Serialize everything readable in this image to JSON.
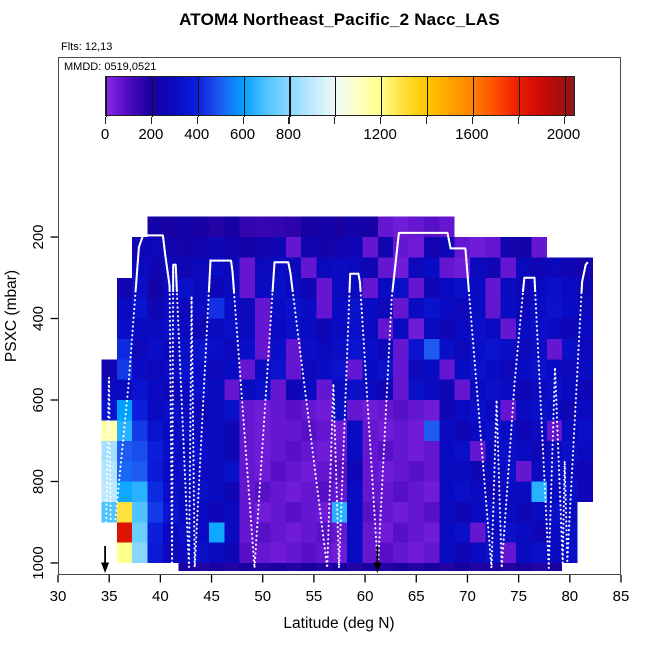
{
  "page_background": "#ffffff",
  "header": {
    "title": "ATOM4 Northeast_Pacific_2 Nacc_LAS",
    "flights_label": "Flts: 12,13",
    "mmdd_label": "MMDD: 0519,0521"
  },
  "colors": {
    "track": "#ffffff",
    "arrow": "#000000",
    "axis": "#000000",
    "box_border": "#4a4a4a"
  },
  "chart_data": {
    "type": "heatmap",
    "title": "ATOM4 Northeast_Pacific_2 Nacc_LAS",
    "xlabel": "Latitude (deg N)",
    "ylabel": "PSXC (mbar)",
    "xlim": [
      30,
      85
    ],
    "ylim": [
      150,
      1020
    ],
    "y_axis_reversed": true,
    "x_ticks": [
      30,
      35,
      40,
      45,
      50,
      55,
      60,
      65,
      70,
      75,
      80,
      85
    ],
    "y_ticks": [
      200,
      400,
      600,
      800,
      1000
    ],
    "grid": false,
    "colorbar": {
      "vmin": 0,
      "vmax": 2050,
      "tick_values": [
        0,
        200,
        400,
        600,
        800,
        1000,
        1200,
        1400,
        1600,
        1800,
        2000
      ],
      "labeled_values": [
        0,
        200,
        400,
        600,
        800,
        1200,
        1600,
        2000
      ],
      "stops": [
        [
          0,
          "#8c28eb"
        ],
        [
          100,
          "#4b0abe"
        ],
        [
          200,
          "#1900a0"
        ],
        [
          300,
          "#0a0ac0"
        ],
        [
          400,
          "#0a1edc"
        ],
        [
          500,
          "#1e5af0"
        ],
        [
          600,
          "#00a0ff"
        ],
        [
          700,
          "#50c3ff"
        ],
        [
          800,
          "#87d7ff"
        ],
        [
          900,
          "#bee8ff"
        ],
        [
          1000,
          "#ebfaf8"
        ],
        [
          1100,
          "#ffffc8"
        ],
        [
          1200,
          "#ffff8c"
        ],
        [
          1300,
          "#ffe13c"
        ],
        [
          1400,
          "#ffc800"
        ],
        [
          1500,
          "#ffa500"
        ],
        [
          1600,
          "#ff8200"
        ],
        [
          1700,
          "#ff5000"
        ],
        [
          1800,
          "#ee1e00"
        ],
        [
          1900,
          "#cd0a05"
        ],
        [
          2000,
          "#a50f0f"
        ],
        [
          2050,
          "#8c1919"
        ]
      ]
    },
    "lat_edges": [
      34.25,
      35.75,
      37.25,
      38.75,
      40.25,
      41.75,
      43.25,
      44.75,
      46.25,
      47.75,
      49.25,
      50.75,
      52.25,
      53.75,
      55.25,
      56.75,
      58.25,
      59.75,
      61.25,
      62.75,
      64.25,
      65.75,
      67.25,
      68.75,
      70.25,
      71.75,
      73.25,
      74.75,
      76.25,
      77.75,
      79.25,
      80.75,
      82.25
    ],
    "pressure_edges": [
      150,
      200,
      250,
      300,
      350,
      400,
      450,
      500,
      550,
      600,
      650,
      700,
      750,
      800,
      850,
      900,
      950,
      1000,
      1020
    ],
    "values": [
      [
        null,
        null,
        null,
        230,
        200,
        230,
        200,
        180,
        210,
        150,
        140,
        150,
        160,
        210,
        230,
        200,
        230,
        210,
        60,
        45,
        60,
        80,
        60,
        null,
        null,
        null,
        null,
        null,
        null,
        null,
        null,
        null
      ],
      [
        null,
        null,
        260,
        280,
        250,
        230,
        250,
        270,
        250,
        230,
        250,
        270,
        60,
        250,
        230,
        250,
        270,
        60,
        250,
        60,
        45,
        250,
        270,
        60,
        45,
        60,
        250,
        230,
        60,
        null,
        null,
        null
      ],
      [
        null,
        null,
        300,
        260,
        290,
        260,
        290,
        310,
        290,
        60,
        290,
        310,
        290,
        60,
        290,
        310,
        290,
        260,
        60,
        45,
        290,
        310,
        60,
        45,
        290,
        260,
        60,
        290,
        260,
        290,
        260,
        230
      ],
      [
        null,
        250,
        320,
        230,
        300,
        330,
        300,
        270,
        300,
        60,
        300,
        330,
        300,
        270,
        60,
        300,
        300,
        60,
        300,
        330,
        60,
        270,
        300,
        330,
        300,
        60,
        300,
        270,
        300,
        330,
        300,
        270
      ],
      [
        null,
        300,
        350,
        260,
        310,
        280,
        310,
        430,
        310,
        280,
        60,
        310,
        340,
        310,
        60,
        310,
        340,
        310,
        280,
        60,
        310,
        340,
        310,
        280,
        310,
        60,
        310,
        280,
        310,
        340,
        310,
        280
      ],
      [
        null,
        320,
        300,
        300,
        330,
        300,
        270,
        300,
        330,
        300,
        60,
        300,
        330,
        300,
        270,
        300,
        330,
        300,
        60,
        300,
        45,
        300,
        270,
        300,
        330,
        300,
        60,
        300,
        330,
        300,
        270,
        300
      ],
      [
        null,
        420,
        280,
        320,
        290,
        320,
        350,
        320,
        290,
        320,
        60,
        320,
        60,
        320,
        290,
        320,
        350,
        320,
        290,
        60,
        350,
        500,
        320,
        290,
        320,
        350,
        320,
        290,
        320,
        60,
        320,
        290
      ],
      [
        250,
        450,
        310,
        280,
        310,
        340,
        310,
        280,
        310,
        60,
        310,
        340,
        60,
        280,
        310,
        340,
        60,
        310,
        340,
        60,
        280,
        310,
        60,
        310,
        340,
        310,
        280,
        310,
        340,
        310,
        280,
        310
      ],
      [
        300,
        300,
        350,
        300,
        270,
        300,
        330,
        300,
        60,
        300,
        330,
        60,
        270,
        300,
        60,
        300,
        330,
        300,
        270,
        60,
        330,
        300,
        270,
        60,
        300,
        330,
        300,
        270,
        300,
        330,
        300,
        270
      ],
      [
        350,
        600,
        400,
        300,
        330,
        300,
        270,
        300,
        330,
        60,
        45,
        60,
        80,
        60,
        45,
        330,
        60,
        45,
        60,
        80,
        60,
        45,
        270,
        300,
        330,
        300,
        60,
        300,
        330,
        300,
        270,
        300
      ],
      [
        1150,
        650,
        450,
        350,
        300,
        330,
        300,
        300,
        270,
        60,
        45,
        60,
        60,
        80,
        60,
        45,
        300,
        60,
        45,
        60,
        45,
        500,
        300,
        270,
        300,
        330,
        300,
        270,
        300,
        60,
        300,
        330
      ],
      [
        850,
        500,
        480,
        400,
        320,
        300,
        330,
        300,
        270,
        60,
        45,
        60,
        80,
        60,
        45,
        60,
        300,
        60,
        80,
        60,
        45,
        60,
        300,
        330,
        60,
        300,
        330,
        300,
        270,
        300,
        330,
        300
      ],
      [
        880,
        520,
        500,
        380,
        300,
        330,
        300,
        300,
        330,
        60,
        45,
        80,
        60,
        45,
        60,
        80,
        270,
        60,
        45,
        60,
        80,
        60,
        300,
        300,
        270,
        300,
        330,
        60,
        300,
        330,
        300,
        270
      ],
      [
        900,
        620,
        650,
        420,
        320,
        300,
        330,
        300,
        270,
        60,
        80,
        60,
        45,
        60,
        80,
        60,
        300,
        60,
        60,
        80,
        60,
        45,
        300,
        330,
        300,
        270,
        300,
        300,
        650,
        300,
        330,
        270
      ],
      [
        700,
        1300,
        700,
        450,
        350,
        300,
        300,
        270,
        300,
        60,
        45,
        60,
        80,
        60,
        45,
        650,
        300,
        80,
        60,
        45,
        60,
        80,
        300,
        270,
        300,
        330,
        300,
        270,
        300,
        330,
        300,
        null
      ],
      [
        null,
        1850,
        750,
        400,
        300,
        330,
        300,
        620,
        300,
        60,
        80,
        60,
        45,
        60,
        80,
        60,
        300,
        60,
        45,
        80,
        60,
        45,
        300,
        330,
        60,
        300,
        330,
        300,
        270,
        300,
        330,
        null
      ],
      [
        null,
        1200,
        800,
        380,
        280,
        300,
        330,
        300,
        270,
        80,
        60,
        45,
        60,
        80,
        60,
        45,
        300,
        60,
        80,
        60,
        45,
        60,
        300,
        270,
        300,
        330,
        60,
        300,
        330,
        300,
        330,
        null
      ],
      [
        null,
        null,
        null,
        null,
        null,
        200,
        180,
        200,
        180,
        200,
        180,
        200,
        180,
        200,
        180,
        200,
        180,
        200,
        180,
        200,
        180,
        200,
        180,
        200,
        180,
        200,
        180,
        200,
        180,
        200,
        null,
        null
      ]
    ],
    "flight_track": {
      "color": "#ffffff",
      "solid_above_mbar": 335,
      "points": [
        [
          34.62,
          1008
        ],
        [
          34.98,
          545
        ],
        [
          35.2,
          1000
        ],
        [
          36.9,
          560
        ],
        [
          37.9,
          225
        ],
        [
          38.3,
          196
        ],
        [
          40.25,
          196
        ],
        [
          40.45,
          240
        ],
        [
          40.9,
          320
        ],
        [
          41.15,
          1005
        ],
        [
          41.25,
          268
        ],
        [
          41.5,
          268
        ],
        [
          42.8,
          1010
        ],
        [
          43.05,
          345
        ],
        [
          43.35,
          1010
        ],
        [
          44.9,
          258
        ],
        [
          46.9,
          258
        ],
        [
          47.05,
          285
        ],
        [
          49.2,
          1012
        ],
        [
          51.15,
          262
        ],
        [
          52.5,
          262
        ],
        [
          52.7,
          288
        ],
        [
          56.3,
          1012
        ],
        [
          56.9,
          560
        ],
        [
          57.45,
          1012
        ],
        [
          58.55,
          290
        ],
        [
          59.35,
          290
        ],
        [
          59.5,
          312
        ],
        [
          61.25,
          1012
        ],
        [
          62.6,
          350
        ],
        [
          63.3,
          190
        ],
        [
          68.05,
          190
        ],
        [
          68.35,
          228
        ],
        [
          69.8,
          228
        ],
        [
          72.35,
          1012
        ],
        [
          72.85,
          600
        ],
        [
          73.35,
          1012
        ],
        [
          74.6,
          560
        ],
        [
          75.55,
          300
        ],
        [
          76.55,
          300
        ],
        [
          77.95,
          1012
        ],
        [
          78.55,
          520
        ],
        [
          79.3,
          1000
        ],
        [
          79.5,
          750
        ],
        [
          79.75,
          995
        ],
        [
          81.2,
          310
        ],
        [
          81.55,
          268
        ],
        [
          81.75,
          262
        ]
      ]
    },
    "arrows_lat": [
      34.6,
      61.2
    ]
  }
}
